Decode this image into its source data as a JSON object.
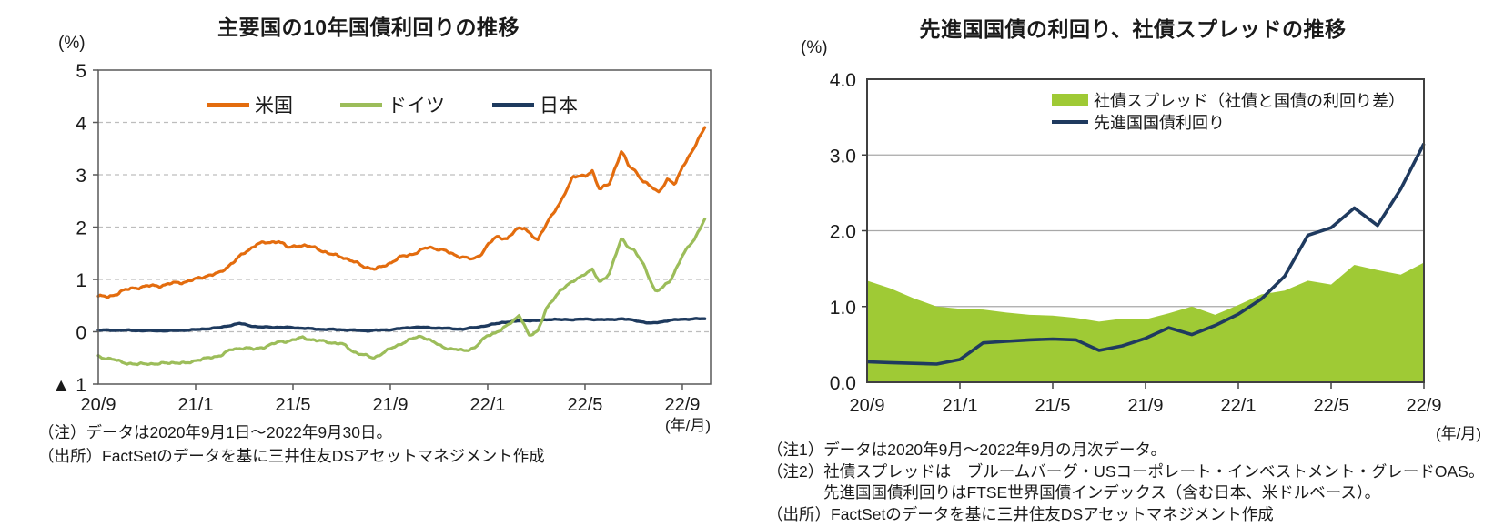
{
  "chart_data": [
    {
      "id": "major-10y-bond-yields",
      "type": "line",
      "title": "主要国の10年国債利回りの推移",
      "y_unit": "(%)",
      "x_unit": "(年/月)",
      "ylim": [
        -1,
        5
      ],
      "grid_values": [
        0,
        1,
        2,
        3,
        4
      ],
      "y_ticks": {
        "values": [
          5,
          4,
          3,
          2,
          1,
          0,
          -1
        ],
        "labels": [
          "5",
          "4",
          "3",
          "2",
          "1",
          "0",
          "▲ 1"
        ]
      },
      "x_ticks": {
        "months": [
          0,
          4,
          8,
          12,
          16,
          20,
          24
        ],
        "labels": [
          "20/9",
          "21/1",
          "21/5",
          "21/9",
          "22/1",
          "22/5",
          "22/9"
        ]
      },
      "legend_position": "top-inside",
      "grid_style": "dashed",
      "series": [
        {
          "name": "米国",
          "color": "#e36c0e",
          "points": [
            [
              0,
              0.68
            ],
            [
              0.4,
              0.66
            ],
            [
              1,
              0.78
            ],
            [
              1.5,
              0.84
            ],
            [
              2,
              0.87
            ],
            [
              2.5,
              0.88
            ],
            [
              3,
              0.92
            ],
            [
              3.5,
              0.95
            ],
            [
              4,
              1.0
            ],
            [
              4.5,
              1.08
            ],
            [
              5,
              1.12
            ],
            [
              5.5,
              1.32
            ],
            [
              6,
              1.5
            ],
            [
              6.5,
              1.68
            ],
            [
              7,
              1.7
            ],
            [
              7.4,
              1.74
            ],
            [
              7.8,
              1.6
            ],
            [
              8.2,
              1.66
            ],
            [
              8.6,
              1.63
            ],
            [
              9,
              1.6
            ],
            [
              9.5,
              1.48
            ],
            [
              10,
              1.44
            ],
            [
              10.5,
              1.33
            ],
            [
              11,
              1.24
            ],
            [
              11.4,
              1.19
            ],
            [
              12,
              1.32
            ],
            [
              12.5,
              1.44
            ],
            [
              13,
              1.5
            ],
            [
              13.6,
              1.62
            ],
            [
              14,
              1.58
            ],
            [
              14.6,
              1.48
            ],
            [
              15,
              1.42
            ],
            [
              15.4,
              1.38
            ],
            [
              15.8,
              1.52
            ],
            [
              16,
              1.66
            ],
            [
              16.4,
              1.82
            ],
            [
              16.8,
              1.78
            ],
            [
              17.2,
              1.95
            ],
            [
              17.5,
              2.0
            ],
            [
              17.8,
              1.85
            ],
            [
              18.05,
              1.73
            ],
            [
              18.5,
              2.15
            ],
            [
              19,
              2.46
            ],
            [
              19.5,
              2.98
            ],
            [
              20,
              2.96
            ],
            [
              20.3,
              3.08
            ],
            [
              20.6,
              2.72
            ],
            [
              21,
              2.82
            ],
            [
              21.5,
              3.47
            ],
            [
              21.8,
              3.15
            ],
            [
              22,
              3.1
            ],
            [
              22.4,
              2.88
            ],
            [
              23,
              2.66
            ],
            [
              23.4,
              2.92
            ],
            [
              23.7,
              2.8
            ],
            [
              24,
              3.16
            ],
            [
              24.5,
              3.52
            ],
            [
              24.97,
              3.95
            ]
          ]
        },
        {
          "name": "ドイツ",
          "color": "#9cbd5a",
          "points": [
            [
              0,
              -0.47
            ],
            [
              0.5,
              -0.52
            ],
            [
              1,
              -0.58
            ],
            [
              1.6,
              -0.63
            ],
            [
              2,
              -0.6
            ],
            [
              2.5,
              -0.62
            ],
            [
              3,
              -0.58
            ],
            [
              3.6,
              -0.61
            ],
            [
              4,
              -0.54
            ],
            [
              4.5,
              -0.51
            ],
            [
              5,
              -0.45
            ],
            [
              5.5,
              -0.34
            ],
            [
              6,
              -0.3
            ],
            [
              6.4,
              -0.34
            ],
            [
              7,
              -0.26
            ],
            [
              7.5,
              -0.19
            ],
            [
              8,
              -0.16
            ],
            [
              8.4,
              -0.11
            ],
            [
              9,
              -0.17
            ],
            [
              9.5,
              -0.2
            ],
            [
              10,
              -0.23
            ],
            [
              10.5,
              -0.38
            ],
            [
              11,
              -0.46
            ],
            [
              11.3,
              -0.5
            ],
            [
              12,
              -0.33
            ],
            [
              12.5,
              -0.21
            ],
            [
              13,
              -0.12
            ],
            [
              13.3,
              -0.08
            ],
            [
              13.7,
              -0.18
            ],
            [
              14,
              -0.26
            ],
            [
              14.5,
              -0.33
            ],
            [
              15,
              -0.36
            ],
            [
              15.5,
              -0.3
            ],
            [
              16,
              -0.06
            ],
            [
              16.3,
              -0.02
            ],
            [
              16.6,
              0.04
            ],
            [
              17,
              0.2
            ],
            [
              17.3,
              0.32
            ],
            [
              17.7,
              -0.08
            ],
            [
              18.05,
              0.02
            ],
            [
              18.4,
              0.42
            ],
            [
              19,
              0.81
            ],
            [
              19.5,
              0.95
            ],
            [
              20,
              1.12
            ],
            [
              20.3,
              1.18
            ],
            [
              20.6,
              0.94
            ],
            [
              21,
              1.12
            ],
            [
              21.5,
              1.78
            ],
            [
              21.8,
              1.62
            ],
            [
              22,
              1.57
            ],
            [
              22.4,
              1.28
            ],
            [
              22.9,
              0.77
            ],
            [
              23.2,
              0.84
            ],
            [
              23.5,
              0.98
            ],
            [
              24,
              1.45
            ],
            [
              24.5,
              1.78
            ],
            [
              24.97,
              2.2
            ]
          ]
        },
        {
          "name": "日本",
          "color": "#1e3a5e",
          "points": [
            [
              0,
              0.03
            ],
            [
              1,
              0.03
            ],
            [
              2,
              0.02
            ],
            [
              3,
              0.02
            ],
            [
              4,
              0.04
            ],
            [
              5,
              0.08
            ],
            [
              5.8,
              0.16
            ],
            [
              6.2,
              0.12
            ],
            [
              6.6,
              0.09
            ],
            [
              7,
              0.09
            ],
            [
              8,
              0.08
            ],
            [
              9,
              0.05
            ],
            [
              10,
              0.04
            ],
            [
              11,
              0.02
            ],
            [
              12,
              0.04
            ],
            [
              13,
              0.09
            ],
            [
              14,
              0.07
            ],
            [
              15,
              0.05
            ],
            [
              16,
              0.12
            ],
            [
              16.6,
              0.18
            ],
            [
              17,
              0.19
            ],
            [
              17.5,
              0.22
            ],
            [
              18,
              0.21
            ],
            [
              18.6,
              0.24
            ],
            [
              19,
              0.23
            ],
            [
              20,
              0.24
            ],
            [
              21,
              0.23
            ],
            [
              21.5,
              0.25
            ],
            [
              22,
              0.22
            ],
            [
              22.7,
              0.16
            ],
            [
              23,
              0.18
            ],
            [
              23.5,
              0.22
            ],
            [
              24,
              0.24
            ],
            [
              24.97,
              0.25
            ]
          ]
        }
      ],
      "notes": [
        "（注）データは2020年9月1日～2022年9月30日。",
        "（出所）FactSetのデータを基に三井住友DSアセットマネジメント作成"
      ]
    },
    {
      "id": "dm-govt-yield-credit-spread",
      "type": "area+line",
      "title": "先進国国債の利回り、社債スプレッドの推移",
      "y_unit": "(%)",
      "x_unit": "(年/月)",
      "ylim": [
        0,
        4
      ],
      "grid_values": [
        1,
        2,
        3
      ],
      "y_ticks": {
        "values": [
          4,
          3,
          2,
          1,
          0
        ],
        "labels": [
          "4.0",
          "3.0",
          "2.0",
          "1.0",
          "0.0"
        ]
      },
      "x_ticks": {
        "months": [
          0,
          4,
          8,
          12,
          16,
          20,
          24
        ],
        "labels": [
          "20/9",
          "21/1",
          "21/5",
          "21/9",
          "22/1",
          "22/5",
          "22/9"
        ]
      },
      "legend_position": "top-inside",
      "grid_style": "solid",
      "categories": [
        "20/9",
        "20/10",
        "20/11",
        "20/12",
        "21/1",
        "21/2",
        "21/3",
        "21/4",
        "21/5",
        "21/6",
        "21/7",
        "21/8",
        "21/9",
        "21/10",
        "21/11",
        "21/12",
        "22/1",
        "22/2",
        "22/3",
        "22/4",
        "22/5",
        "22/6",
        "22/7",
        "22/8",
        "22/9"
      ],
      "series": [
        {
          "name": "社債スプレッド（社債と国債の利回り差）",
          "type": "area",
          "color": "#9fca35",
          "values": [
            1.34,
            1.24,
            1.11,
            1.0,
            0.97,
            0.96,
            0.92,
            0.89,
            0.88,
            0.85,
            0.8,
            0.84,
            0.83,
            0.91,
            1.0,
            0.89,
            1.02,
            1.16,
            1.21,
            1.34,
            1.29,
            1.55,
            1.48,
            1.42,
            1.58
          ]
        },
        {
          "name": "先進国国債利回り",
          "type": "line",
          "color": "#1f3a5f",
          "values": [
            0.27,
            0.26,
            0.25,
            0.24,
            0.3,
            0.52,
            0.54,
            0.56,
            0.57,
            0.56,
            0.42,
            0.48,
            0.58,
            0.72,
            0.63,
            0.75,
            0.9,
            1.1,
            1.4,
            1.94,
            2.04,
            2.3,
            2.07,
            2.55,
            3.15
          ]
        }
      ],
      "notes": [
        "（注1）データは2020年9月～2022年9月の月次データ。",
        "（注2）社債スプレッドは　ブルームバーグ・USコーポレート・インベストメント・グレードOAS。",
        "先進国国債利回りはFTSE世界国債インデックス（含む日本、米ドルベース）。",
        "（出所）FactSetのデータを基に三井住友DSアセットマネジメント作成"
      ]
    }
  ]
}
